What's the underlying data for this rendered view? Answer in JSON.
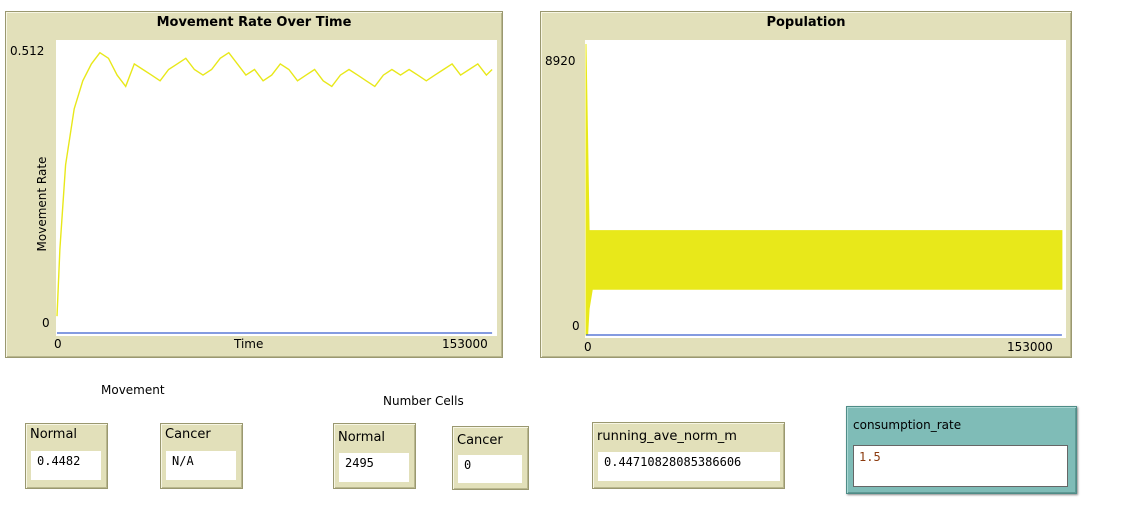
{
  "plots": {
    "movement": {
      "title": "Movement Rate Over Time",
      "y_max_label": "0.512",
      "y_min_label": "0",
      "x_min_label": "0",
      "x_max_label": "153000",
      "xlabel": "Time",
      "ylabel": "Movement Rate"
    },
    "population": {
      "title": "Population",
      "y_max_label": "8920",
      "y_min_label": "0",
      "x_min_label": "0",
      "x_max_label": "153000"
    }
  },
  "chart_data": [
    {
      "type": "line",
      "title": "Movement Rate Over Time",
      "xlabel": "Time",
      "ylabel": "Movement Rate",
      "xlim": [
        0,
        153000
      ],
      "ylim": [
        0,
        0.512
      ],
      "series": [
        {
          "color": "#e8e81a",
          "x": [
            0,
            1000,
            3000,
            6000,
            9000,
            12000,
            15000,
            18000,
            21000,
            24000,
            27000,
            30000,
            33000,
            36000,
            39000,
            42000,
            45000,
            48000,
            51000,
            54000,
            57000,
            60000,
            63000,
            66000,
            69000,
            72000,
            75000,
            78000,
            81000,
            84000,
            87000,
            90000,
            93000,
            96000,
            99000,
            102000,
            105000,
            108000,
            111000,
            114000,
            117000,
            120000,
            123000,
            126000,
            129000,
            132000,
            135000,
            138000,
            141000,
            144000,
            147000,
            150000,
            152000
          ],
          "values": [
            0.03,
            0.15,
            0.3,
            0.4,
            0.45,
            0.48,
            0.5,
            0.49,
            0.46,
            0.44,
            0.48,
            0.47,
            0.46,
            0.45,
            0.47,
            0.48,
            0.49,
            0.47,
            0.46,
            0.47,
            0.49,
            0.5,
            0.48,
            0.46,
            0.47,
            0.45,
            0.46,
            0.48,
            0.47,
            0.45,
            0.46,
            0.47,
            0.45,
            0.44,
            0.46,
            0.47,
            0.46,
            0.45,
            0.44,
            0.46,
            0.47,
            0.46,
            0.47,
            0.46,
            0.45,
            0.46,
            0.47,
            0.48,
            0.46,
            0.47,
            0.48,
            0.46,
            0.47
          ]
        },
        {
          "color": "#3a5fcd",
          "x": [
            0,
            152000
          ],
          "values": [
            0,
            0
          ]
        }
      ]
    },
    {
      "type": "area",
      "title": "Population",
      "xlim": [
        0,
        153000
      ],
      "ylim": [
        0,
        8920
      ],
      "series": [
        {
          "color": "#e8e81a",
          "x": [
            0,
            500,
            1000,
            2000,
            152000
          ],
          "values_low": [
            0,
            0,
            800,
            1400,
            1400
          ],
          "values_high": [
            8920,
            6000,
            3200,
            3200,
            3200
          ]
        },
        {
          "color": "#3a5fcd",
          "x": [
            0,
            152000
          ],
          "values_low": [
            0,
            0
          ],
          "values_high": [
            0,
            0
          ]
        }
      ]
    }
  ],
  "labels": {
    "movement": "Movement",
    "number_cells": "Number Cells"
  },
  "monitors": {
    "movement_normal": {
      "title": "Normal",
      "value": "0.4482"
    },
    "movement_cancer": {
      "title": "Cancer",
      "value": "N/A"
    },
    "cells_normal": {
      "title": "Normal",
      "value": "2495"
    },
    "cells_cancer": {
      "title": "Cancer",
      "value": "0"
    },
    "running_ave": {
      "title": "running_ave_norm_m",
      "value": "0.44710828085386606"
    }
  },
  "input": {
    "title": "consumption_rate",
    "value": "1.5"
  },
  "colors": {
    "widget_bg": "#e2e0ba",
    "input_bg": "#7fbcb7",
    "series_yellow": "#e8e81a",
    "series_blue": "#3a5fcd"
  }
}
